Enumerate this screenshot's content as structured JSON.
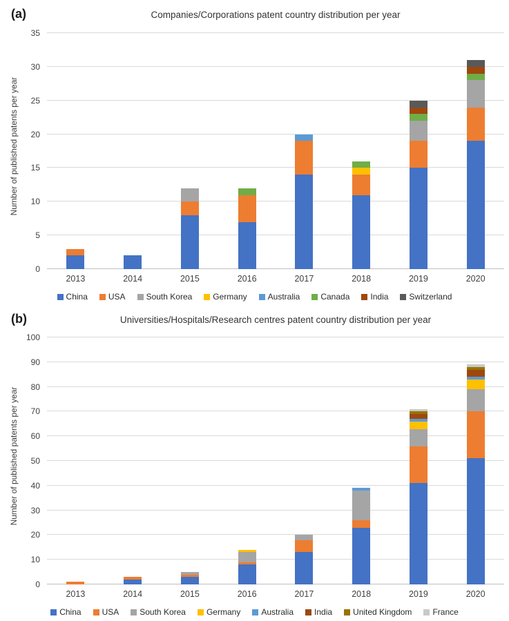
{
  "figure": {
    "background": "#ffffff",
    "gridline_color": "#d9d9d9",
    "axis_line_color": "#bfbfbf"
  },
  "panels": [
    {
      "panel_label": "(a)",
      "title": "Companies/Corporations patent country distribution per year",
      "ylabel": "Number of published patents per year"
    },
    {
      "panel_label": "(b)",
      "title": "Universities/Hospitals/Research centres patent country distribution per year",
      "ylabel": "Number of published patents per year"
    }
  ],
  "chart_data": [
    {
      "type": "bar",
      "stacked": true,
      "title": "Companies/Corporations patent country distribution per year",
      "xlabel": "",
      "ylabel": "Number of published patents per year",
      "categories": [
        "2013",
        "2014",
        "2015",
        "2016",
        "2017",
        "2018",
        "2019",
        "2020"
      ],
      "ylim": [
        0,
        35
      ],
      "yticks": [
        0,
        5,
        10,
        15,
        20,
        25,
        30,
        35
      ],
      "grid": true,
      "legend_position": "bottom",
      "series": [
        {
          "name": "China",
          "color": "#4472C4",
          "values": [
            2,
            2,
            8,
            7,
            14,
            11,
            15,
            19
          ]
        },
        {
          "name": "USA",
          "color": "#ED7D31",
          "values": [
            1,
            0,
            2,
            4,
            5,
            3,
            4,
            5
          ]
        },
        {
          "name": "South Korea",
          "color": "#A5A5A5",
          "values": [
            0,
            0,
            2,
            0,
            0,
            0,
            3,
            4
          ]
        },
        {
          "name": "Germany",
          "color": "#FFC000",
          "values": [
            0,
            0,
            0,
            0,
            0,
            1,
            0,
            0
          ]
        },
        {
          "name": "Australia",
          "color": "#5B9BD5",
          "values": [
            0,
            0,
            0,
            0,
            1,
            0,
            0,
            0
          ]
        },
        {
          "name": "Canada",
          "color": "#70AD47",
          "values": [
            0,
            0,
            0,
            1,
            0,
            1,
            1,
            1
          ]
        },
        {
          "name": "India",
          "color": "#9E480E",
          "values": [
            0,
            0,
            0,
            0,
            0,
            0,
            1,
            1
          ]
        },
        {
          "name": "Switzerland",
          "color": "#595959",
          "values": [
            0,
            0,
            0,
            0,
            0,
            0,
            1,
            1
          ]
        }
      ],
      "totals": [
        3,
        2,
        12,
        12,
        20,
        16,
        25,
        31
      ]
    },
    {
      "type": "bar",
      "stacked": true,
      "title": "Universities/Hospitals/Research centres patent country distribution per year",
      "xlabel": "",
      "ylabel": "Number of published patents per year",
      "categories": [
        "2013",
        "2014",
        "2015",
        "2016",
        "2017",
        "2018",
        "2019",
        "2020"
      ],
      "ylim": [
        0,
        100
      ],
      "yticks": [
        0,
        10,
        20,
        30,
        40,
        50,
        60,
        70,
        80,
        90,
        100
      ],
      "grid": true,
      "legend_position": "bottom",
      "series": [
        {
          "name": "China",
          "color": "#4472C4",
          "values": [
            0,
            2,
            3,
            8,
            13,
            23,
            41,
            51
          ]
        },
        {
          "name": "USA",
          "color": "#ED7D31",
          "values": [
            1,
            1,
            1,
            1,
            5,
            3,
            15,
            19
          ]
        },
        {
          "name": "South Korea",
          "color": "#A5A5A5",
          "values": [
            0,
            0,
            1,
            4,
            2,
            12,
            7,
            9
          ]
        },
        {
          "name": "Germany",
          "color": "#FFC000",
          "values": [
            0,
            0,
            0,
            1,
            0,
            0,
            3,
            4
          ]
        },
        {
          "name": "Australia",
          "color": "#5B9BD5",
          "values": [
            0,
            0,
            0,
            0,
            0,
            1,
            1,
            1
          ]
        },
        {
          "name": "India",
          "color": "#9E480E",
          "values": [
            0,
            0,
            0,
            0,
            0,
            0,
            2,
            3
          ]
        },
        {
          "name": "United Kingdom",
          "color": "#997300",
          "values": [
            0,
            0,
            0,
            0,
            0,
            0,
            1,
            1
          ]
        },
        {
          "name": "France",
          "color": "#C9C9C9",
          "values": [
            0,
            0,
            0,
            0,
            0,
            0,
            1,
            1
          ]
        }
      ],
      "totals": [
        1,
        3,
        5,
        14,
        20,
        39,
        71,
        89
      ]
    }
  ]
}
